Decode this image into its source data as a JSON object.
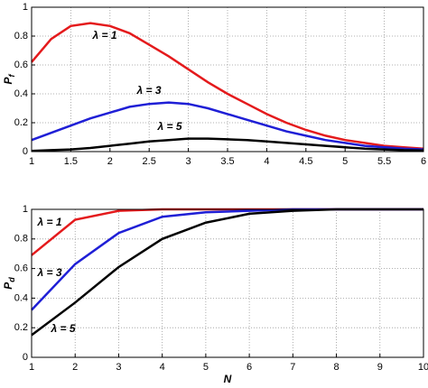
{
  "chart_data": [
    {
      "type": "line",
      "x": [
        1,
        1.25,
        1.5,
        1.75,
        2,
        2.25,
        2.5,
        2.75,
        3,
        3.25,
        3.5,
        3.75,
        4,
        4.25,
        4.5,
        4.75,
        5,
        5.25,
        5.5,
        5.75,
        6
      ],
      "series": [
        {
          "color": "#e41a1c",
          "values": [
            0.62,
            0.78,
            0.87,
            0.89,
            0.87,
            0.82,
            0.74,
            0.66,
            0.57,
            0.48,
            0.4,
            0.33,
            0.26,
            0.2,
            0.15,
            0.11,
            0.08,
            0.06,
            0.04,
            0.03,
            0.02
          ]
        },
        {
          "color": "#1f1fd6",
          "values": [
            0.08,
            0.13,
            0.18,
            0.23,
            0.27,
            0.31,
            0.33,
            0.34,
            0.33,
            0.3,
            0.26,
            0.22,
            0.18,
            0.14,
            0.11,
            0.08,
            0.06,
            0.04,
            0.03,
            0.02,
            0.015
          ]
        },
        {
          "color": "#000000",
          "values": [
            0.005,
            0.01,
            0.015,
            0.025,
            0.04,
            0.055,
            0.07,
            0.08,
            0.09,
            0.09,
            0.085,
            0.08,
            0.07,
            0.06,
            0.05,
            0.04,
            0.03,
            0.02,
            0.015,
            0.01,
            0.008
          ]
        }
      ],
      "annotations": [
        "λ = 1",
        "λ = 3",
        "λ = 5"
      ],
      "ylabel": "P",
      "ylabel_sub": "f",
      "xlim": [
        1,
        6
      ],
      "xticks": [
        1,
        1.5,
        2,
        2.5,
        3,
        3.5,
        4,
        4.5,
        5,
        5.5,
        6
      ],
      "ylim": [
        0,
        1
      ],
      "yticks": [
        0,
        0.2,
        0.4,
        0.6,
        0.8,
        1
      ],
      "grid": true
    },
    {
      "type": "line",
      "x": [
        1,
        2,
        3,
        4,
        5,
        6,
        7,
        8,
        9,
        10
      ],
      "series": [
        {
          "color": "#e41a1c",
          "values": [
            0.69,
            0.93,
            0.99,
            1,
            1,
            1,
            1,
            1,
            1,
            1
          ]
        },
        {
          "color": "#1f1fd6",
          "values": [
            0.32,
            0.63,
            0.84,
            0.95,
            0.98,
            0.99,
            1,
            1,
            1,
            1
          ]
        },
        {
          "color": "#000000",
          "values": [
            0.15,
            0.37,
            0.61,
            0.8,
            0.91,
            0.97,
            0.99,
            1,
            1,
            1
          ]
        }
      ],
      "annotations": [
        "λ = 1",
        "λ = 3",
        "λ = 5"
      ],
      "xlabel": "N",
      "ylabel": "P",
      "ylabel_sub": "d",
      "xlim": [
        1,
        10
      ],
      "xticks": [
        1,
        2,
        3,
        4,
        5,
        6,
        7,
        8,
        9,
        10
      ],
      "ylim": [
        0,
        1
      ],
      "yticks": [
        0,
        0.2,
        0.4,
        0.6,
        0.8,
        1
      ],
      "grid": true
    }
  ]
}
